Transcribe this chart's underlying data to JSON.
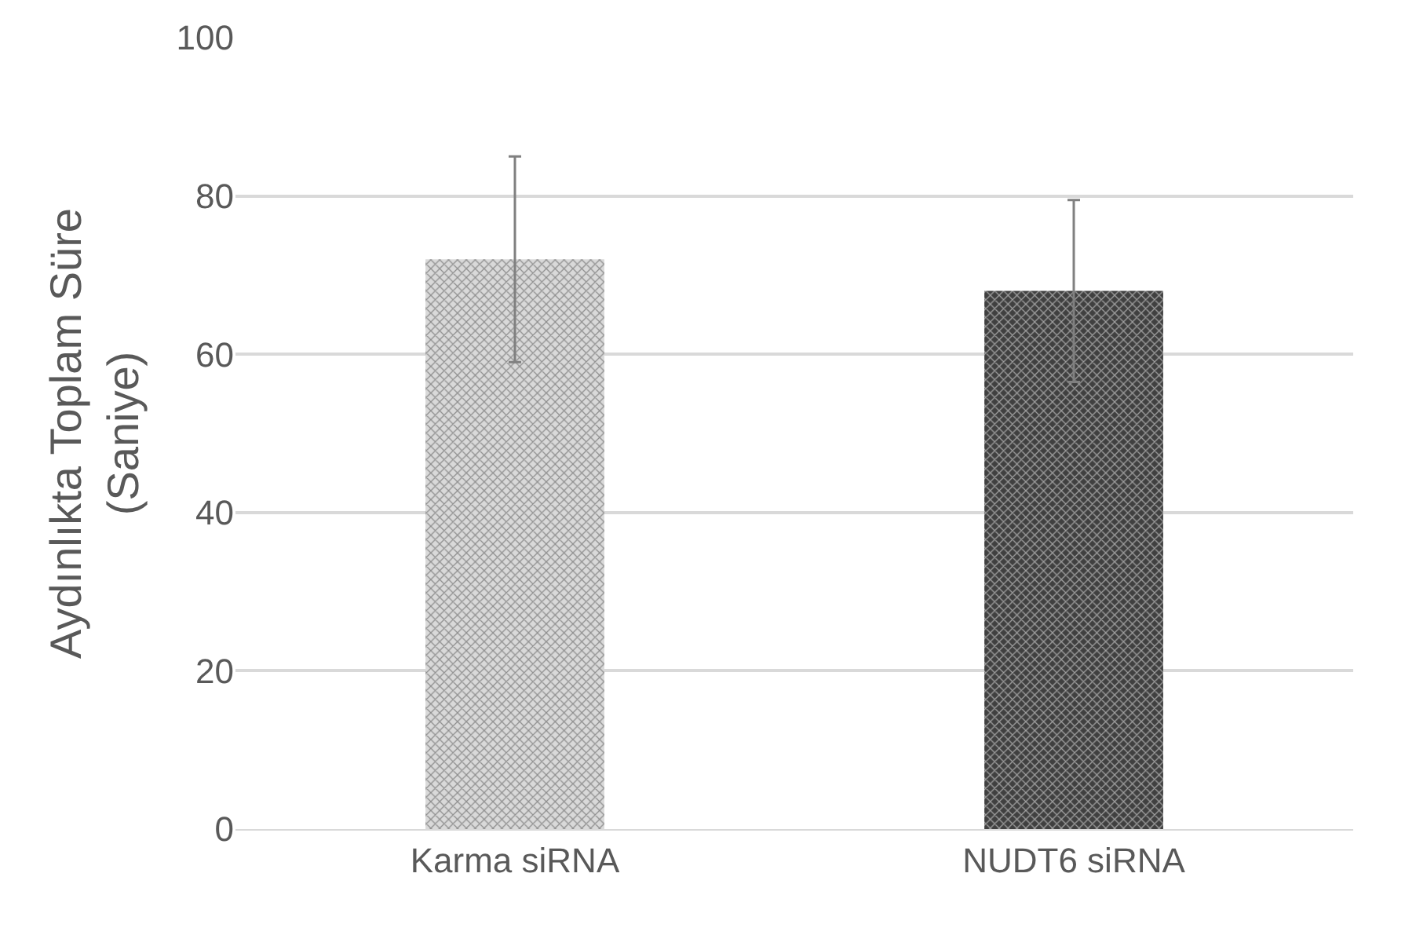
{
  "chart_data": {
    "type": "bar",
    "ylabel": "Aydınlıkta Toplam Süre\n(Saniye)",
    "categories": [
      "Karma siRNA",
      "NUDT6 siRNA"
    ],
    "series": [
      {
        "values": [
          72,
          68
        ],
        "colors": [
          "#d9d9d9",
          "#404040"
        ],
        "errors": [
          13,
          11.5
        ]
      }
    ],
    "ylim": [
      0,
      100
    ],
    "yticks": [
      0,
      20,
      40,
      60,
      80,
      100
    ],
    "grid": "y",
    "legend": false
  }
}
